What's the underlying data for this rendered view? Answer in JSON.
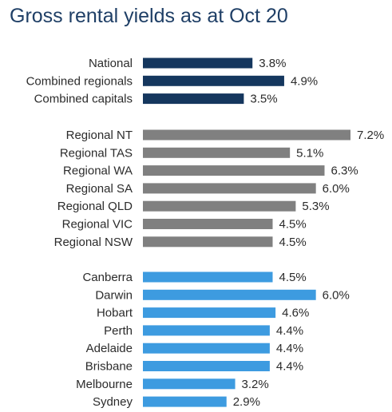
{
  "chart_data": {
    "type": "bar",
    "orientation": "horizontal",
    "title": "Gross rental yields as at Oct 20",
    "value_format": "percent_one_decimal",
    "xlim": [
      0,
      7.2
    ],
    "grid": false,
    "groups": [
      {
        "color": "#15375e",
        "categories": [
          "National",
          "Combined regionals",
          "Combined capitals"
        ],
        "values": [
          3.8,
          4.9,
          3.5
        ],
        "labels": [
          "3.8%",
          "4.9%",
          "3.5%"
        ]
      },
      {
        "color": "#808080",
        "categories": [
          "Regional NT",
          "Regional TAS",
          "Regional WA",
          "Regional SA",
          "Regional QLD",
          "Regional VIC",
          "Regional NSW"
        ],
        "values": [
          7.2,
          5.1,
          6.3,
          6.0,
          5.3,
          4.5,
          4.5
        ],
        "labels": [
          "7.2%",
          "5.1%",
          "6.3%",
          "6.0%",
          "5.3%",
          "4.5%",
          "4.5%"
        ]
      },
      {
        "color": "#3d9be0",
        "categories": [
          "Canberra",
          "Darwin",
          "Hobart",
          "Perth",
          "Adelaide",
          "Brisbane",
          "Melbourne",
          "Sydney"
        ],
        "values": [
          4.5,
          6.0,
          4.6,
          4.4,
          4.4,
          4.4,
          3.2,
          2.9
        ],
        "labels": [
          "4.5%",
          "6.0%",
          "4.6%",
          "4.4%",
          "4.4%",
          "4.4%",
          "3.2%",
          "2.9%"
        ]
      }
    ]
  }
}
